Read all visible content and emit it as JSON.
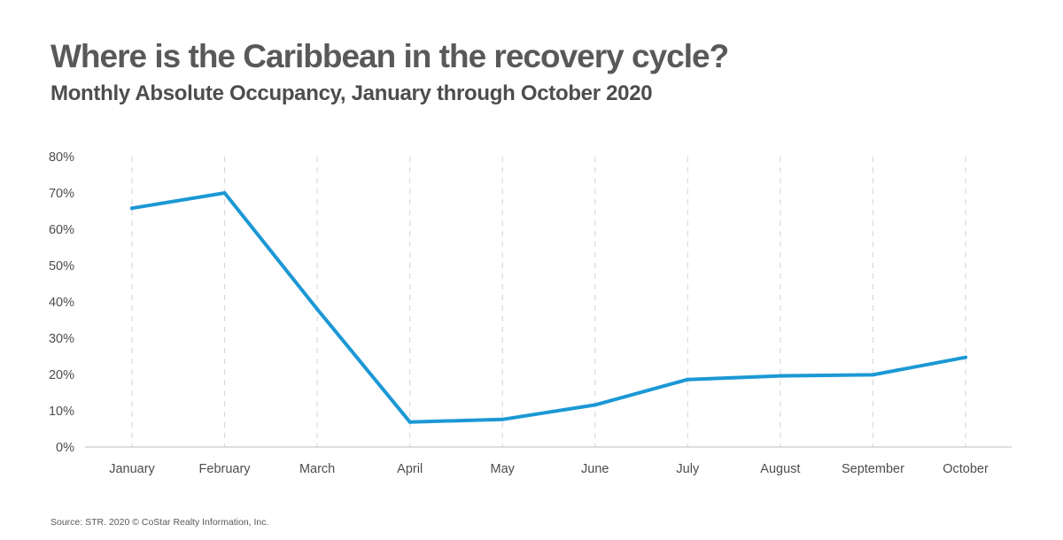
{
  "chart_data": {
    "type": "line",
    "title": "Where is the Caribbean in the recovery cycle?",
    "subtitle": "Monthly Absolute Occupancy, January through October 2020",
    "categories": [
      "January",
      "February",
      "March",
      "April",
      "May",
      "June",
      "July",
      "August",
      "September",
      "October"
    ],
    "series": [
      {
        "values": [
          65.8,
          70.0,
          38.0,
          6.9,
          7.6,
          11.6,
          18.6,
          19.6,
          19.9,
          24.7
        ],
        "color": "#1b98d5"
      }
    ],
    "y_ticks": [
      "0%",
      "10%",
      "20%",
      "30%",
      "40%",
      "50%",
      "60%",
      "70%",
      "80%"
    ],
    "ylim": [
      0,
      80
    ],
    "y_unit": "%",
    "grid": "vertical dashed",
    "xlabel": "",
    "ylabel": ""
  },
  "source": "Source: STR. 2020 © CoStar Realty Information, Inc.",
  "colors": {
    "line": "#1b98d5",
    "grid": "#d9d9d9",
    "axis": "#bfbfbf",
    "text": "#4d4d4f"
  }
}
